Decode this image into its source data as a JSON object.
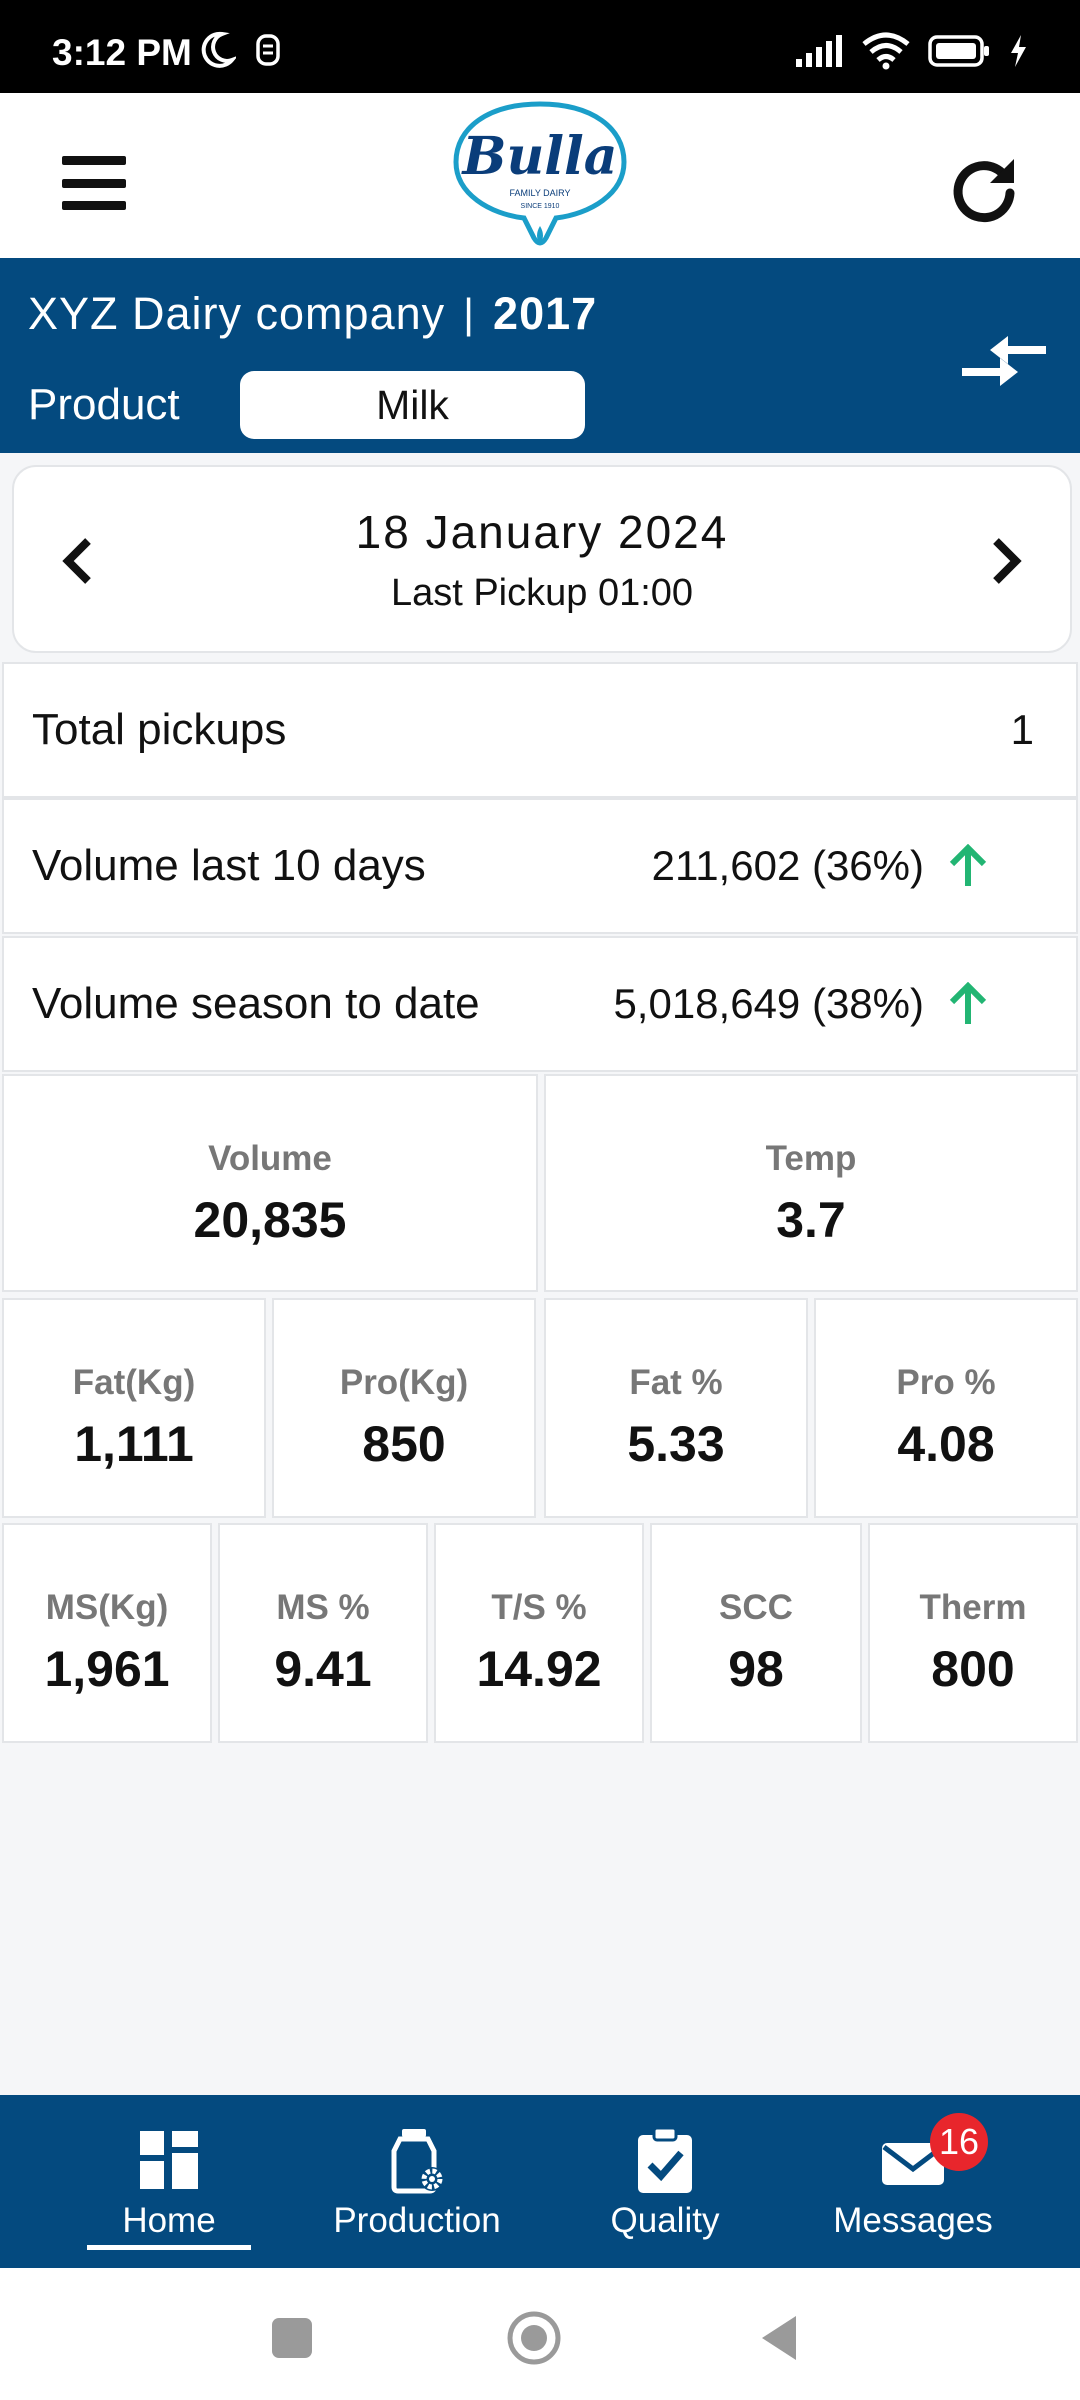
{
  "status_bar": {
    "time": "3:12 PM"
  },
  "header": {
    "logo_text": "Bulla",
    "logo_tagline": "FAMILY DAIRY",
    "logo_since": "SINCE 1910"
  },
  "account": {
    "company": "XYZ Dairy company",
    "separator": "|",
    "year": "2017",
    "product_label": "Product",
    "product_value": "Milk"
  },
  "date_card": {
    "date": "18 January 2024",
    "last_pickup": "Last Pickup 01:00"
  },
  "summary": [
    {
      "label": "Total pickups",
      "value": "1",
      "trend": ""
    },
    {
      "label": "Volume last 10 days",
      "value": "211,602 (36%)",
      "trend": "up"
    },
    {
      "label": "Volume season to date",
      "value": "5,018,649 (38%)",
      "trend": "up"
    }
  ],
  "metrics_row1": [
    {
      "label": "Volume",
      "value": "20,835"
    },
    {
      "label": "Temp",
      "value": "3.7"
    }
  ],
  "metrics_row2": [
    {
      "label": "Fat(Kg)",
      "value": "1,111"
    },
    {
      "label": "Pro(Kg)",
      "value": "850"
    },
    {
      "label": "Fat %",
      "value": "5.33"
    },
    {
      "label": "Pro %",
      "value": "4.08"
    }
  ],
  "metrics_row3": [
    {
      "label": "MS(Kg)",
      "value": "1,961"
    },
    {
      "label": "MS %",
      "value": "9.41"
    },
    {
      "label": "T/S %",
      "value": "14.92"
    },
    {
      "label": "SCC",
      "value": "98"
    },
    {
      "label": "Therm",
      "value": "800"
    }
  ],
  "bottom_nav": {
    "items": [
      {
        "label": "Home",
        "icon": "dashboard-icon",
        "active": true
      },
      {
        "label": "Production",
        "icon": "milk-can-gear-icon",
        "active": false
      },
      {
        "label": "Quality",
        "icon": "clipboard-check-icon",
        "active": false
      },
      {
        "label": "Messages",
        "icon": "envelope-icon",
        "active": false,
        "badge": "16"
      }
    ]
  },
  "colors": {
    "brand_blue": "#044a7f",
    "trend_up": "#22b573",
    "badge_red": "#e8262c"
  }
}
